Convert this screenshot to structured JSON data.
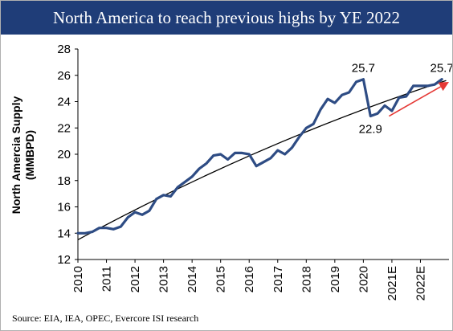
{
  "header": {
    "title": "North America to reach previous highs by YE 2022"
  },
  "footer": {
    "source": "Source: EIA, IEA, OPEC, Evercore ISI research"
  },
  "chart_data": {
    "type": "line",
    "title": "North America to reach previous highs by YE 2022",
    "ylabel": [
      "North Amercia Supply",
      "(MMBPD)"
    ],
    "xlabel": "",
    "ylim": [
      12,
      28
    ],
    "yticks": [
      12,
      14,
      16,
      18,
      20,
      22,
      24,
      26,
      28
    ],
    "xlim": [
      2010,
      2023
    ],
    "xticks": [
      {
        "value": 2010,
        "label": "2010"
      },
      {
        "value": 2011,
        "label": "2011"
      },
      {
        "value": 2012,
        "label": "2012"
      },
      {
        "value": 2013,
        "label": "2013"
      },
      {
        "value": 2014,
        "label": "2014"
      },
      {
        "value": 2015,
        "label": "2015"
      },
      {
        "value": 2016,
        "label": "2016"
      },
      {
        "value": 2017,
        "label": "2017"
      },
      {
        "value": 2018,
        "label": "2018"
      },
      {
        "value": 2019,
        "label": "2019"
      },
      {
        "value": 2020,
        "label": "2020"
      },
      {
        "value": 2021,
        "label": "2021E"
      },
      {
        "value": 2022,
        "label": "2022E"
      }
    ],
    "grid": false,
    "series": [
      {
        "color": "#2e4c84",
        "points": [
          [
            2010.0,
            14.0
          ],
          [
            2010.25,
            14.0
          ],
          [
            2010.5,
            14.1
          ],
          [
            2010.75,
            14.4
          ],
          [
            2011.0,
            14.4
          ],
          [
            2011.25,
            14.3
          ],
          [
            2011.5,
            14.5
          ],
          [
            2011.75,
            15.2
          ],
          [
            2012.0,
            15.6
          ],
          [
            2012.25,
            15.4
          ],
          [
            2012.5,
            15.7
          ],
          [
            2012.75,
            16.6
          ],
          [
            2013.0,
            16.9
          ],
          [
            2013.25,
            16.8
          ],
          [
            2013.5,
            17.5
          ],
          [
            2013.75,
            17.9
          ],
          [
            2014.0,
            18.3
          ],
          [
            2014.25,
            18.9
          ],
          [
            2014.5,
            19.3
          ],
          [
            2014.75,
            19.9
          ],
          [
            2015.0,
            20.0
          ],
          [
            2015.25,
            19.6
          ],
          [
            2015.5,
            20.1
          ],
          [
            2015.75,
            20.1
          ],
          [
            2016.0,
            20.0
          ],
          [
            2016.25,
            19.1
          ],
          [
            2016.5,
            19.4
          ],
          [
            2016.75,
            19.7
          ],
          [
            2017.0,
            20.3
          ],
          [
            2017.25,
            20.0
          ],
          [
            2017.5,
            20.5
          ],
          [
            2017.75,
            21.3
          ],
          [
            2018.0,
            22.0
          ],
          [
            2018.25,
            22.3
          ],
          [
            2018.5,
            23.4
          ],
          [
            2018.75,
            24.2
          ],
          [
            2019.0,
            23.9
          ],
          [
            2019.25,
            24.5
          ],
          [
            2019.5,
            24.7
          ],
          [
            2019.75,
            25.5
          ],
          [
            2020.0,
            25.7
          ],
          [
            2020.25,
            22.9
          ],
          [
            2020.5,
            23.1
          ],
          [
            2020.75,
            23.7
          ],
          [
            2021.0,
            23.3
          ],
          [
            2021.25,
            24.3
          ],
          [
            2021.5,
            24.4
          ],
          [
            2021.75,
            25.2
          ],
          [
            2022.0,
            25.2
          ],
          [
            2022.25,
            25.2
          ],
          [
            2022.5,
            25.3
          ],
          [
            2022.75,
            25.7
          ]
        ]
      }
    ],
    "trendline": {
      "color": "#000000",
      "from": [
        2010.0,
        13.5
      ],
      "to": [
        2022.9,
        25.6
      ]
    },
    "arrow": {
      "color": "#e53935",
      "from": [
        2020.9,
        22.9
      ],
      "to": [
        2023.0,
        25.5
      ]
    },
    "annotations": [
      {
        "text": "25.7",
        "x": 2020.0,
        "y": 25.7,
        "anchor": "above"
      },
      {
        "text": "25.7",
        "x": 2022.75,
        "y": 25.7,
        "anchor": "above"
      },
      {
        "text": "22.9",
        "x": 2020.25,
        "y": 22.9,
        "anchor": "below"
      }
    ]
  }
}
